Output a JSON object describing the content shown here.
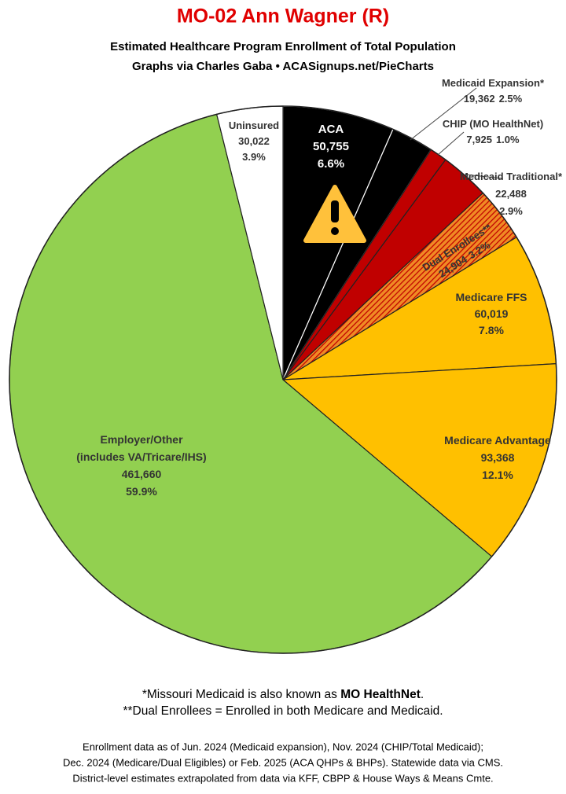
{
  "chart_data": {
    "type": "pie",
    "title": "MO-02 Ann Wagner (R)",
    "subtitle": [
      "Estimated Healthcare Program Enrollment of Total Population",
      "Graphs via Charles Gaba  •  ACASignups.net/PieCharts"
    ],
    "categories": [
      "ACA",
      "Medicaid Expansion*",
      "CHIP (MO HealthNet)",
      "Medicaid Traditional*",
      "Dual Enrollees**",
      "Medicare FFS",
      "Medicare Advantage",
      "Employer/Other",
      "Uninsured"
    ],
    "category_notes": [
      null,
      null,
      null,
      null,
      null,
      null,
      null,
      "(includes VA/Tricare/IHS)",
      null
    ],
    "values": [
      50755,
      19362,
      7925,
      22488,
      24904,
      60019,
      93368,
      461660,
      30022
    ],
    "value_labels": [
      "50,755",
      "19,362",
      "7,925",
      "22,488",
      "24,904",
      "60,019",
      "93,368",
      "461,660",
      "30,022"
    ],
    "percent_labels": [
      "6.6%",
      "2.5%",
      "1.0%",
      "2.9%",
      "3.2%",
      "7.8%",
      "12.1%",
      "59.9%",
      "3.9%"
    ],
    "colors": [
      "#000000",
      "#000000",
      "#c00000",
      "#c00000",
      "#f08a24",
      "#ffc000",
      "#ffc000",
      "#92d050",
      "#ffffff"
    ],
    "hatched": [
      false,
      false,
      false,
      false,
      true,
      false,
      false,
      false,
      false
    ],
    "footnotes": [
      {
        "text": "*Missouri Medicaid is also known as ",
        "bold": "MO HealthNet",
        "end": "."
      },
      {
        "text": "**Dual Enrollees = Enrolled in both Medicare and Medicaid."
      }
    ],
    "sources": [
      "Enrollment data as of Jun. 2024 (Medicaid expansion), Nov. 2024 (CHIP/Total Medicaid);",
      "Dec. 2024 (Medicare/Dual Eligibles) or Feb. 2025 (ACA QHPs & BHPs). Statewide data via CMS.",
      "District-level estimates extrapolated from data via KFF, CBPP & House Ways & Means Cmte."
    ]
  }
}
